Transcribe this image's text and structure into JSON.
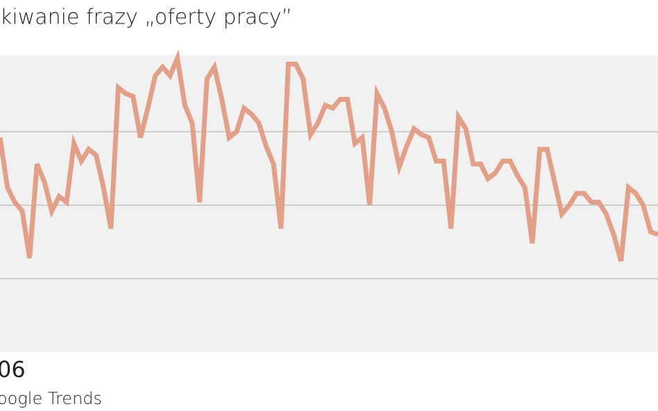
{
  "chart_data": {
    "type": "line",
    "title": "kiwanie frazy „oferty pracy”",
    "x_label": "06",
    "source": "oogle Trends",
    "color": "#e2a088",
    "ylim": [
      0,
      100
    ],
    "gridlines": [
      25,
      50,
      75
    ],
    "values": [
      73,
      56,
      51,
      48,
      32,
      64,
      58,
      48,
      53,
      51,
      71,
      65,
      69,
      67,
      56,
      42,
      90,
      88,
      87,
      73,
      83,
      94,
      97,
      94,
      100,
      84,
      78,
      51,
      93,
      97,
      86,
      73,
      75,
      83,
      81,
      78,
      70,
      64,
      42,
      98,
      98,
      93,
      74,
      78,
      84,
      83,
      86,
      86,
      71,
      73,
      50,
      88,
      83,
      75,
      63,
      70,
      76,
      74,
      73,
      65,
      65,
      42,
      80,
      76,
      64,
      64,
      59,
      61,
      65,
      65,
      60,
      56,
      37,
      69,
      69,
      58,
      47,
      50,
      54,
      54,
      51,
      51,
      47,
      40,
      31,
      56,
      54,
      50,
      41,
      40
    ]
  }
}
